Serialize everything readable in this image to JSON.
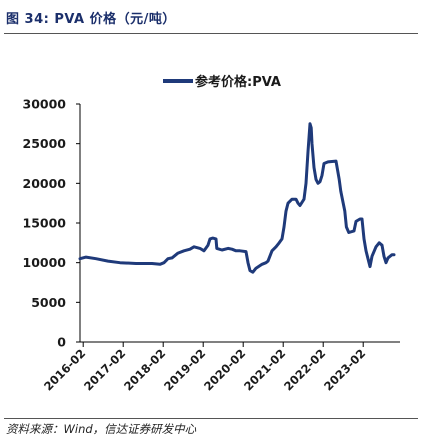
{
  "figure": {
    "title": "图 34:  PVA 价格（元/吨）",
    "source": "资料来源：Wind，信达证券研发中心"
  },
  "chart_data": {
    "type": "line",
    "legend": {
      "entries": [
        "参考价格:PVA"
      ],
      "placement": "top-center"
    },
    "xlabel": "",
    "ylabel": "",
    "xlim": [
      2016.0,
      2024.0
    ],
    "ylim": [
      0,
      30000
    ],
    "y_ticks": [
      0,
      5000,
      10000,
      15000,
      20000,
      25000,
      30000
    ],
    "x_ticks": [
      {
        "label": "2016-02",
        "x": 2016.08
      },
      {
        "label": "2017-02",
        "x": 2017.08
      },
      {
        "label": "2018-02",
        "x": 2018.08
      },
      {
        "label": "2019-02",
        "x": 2019.08
      },
      {
        "label": "2020-02",
        "x": 2020.08
      },
      {
        "label": "2021-02",
        "x": 2021.08
      },
      {
        "label": "2022-02",
        "x": 2022.08
      },
      {
        "label": "2023-02",
        "x": 2023.08
      }
    ],
    "colors": {
      "series": "#1f3a7a",
      "axis": "#000000"
    },
    "grid": false,
    "series": [
      {
        "name": "参考价格:PVA",
        "points": [
          [
            2016.0,
            10500
          ],
          [
            2016.15,
            10700
          ],
          [
            2016.4,
            10500
          ],
          [
            2016.7,
            10200
          ],
          [
            2017.0,
            10000
          ],
          [
            2017.4,
            9900
          ],
          [
            2017.8,
            9900
          ],
          [
            2018.0,
            9800
          ],
          [
            2018.1,
            10000
          ],
          [
            2018.2,
            10500
          ],
          [
            2018.3,
            10600
          ],
          [
            2018.45,
            11200
          ],
          [
            2018.6,
            11500
          ],
          [
            2018.75,
            11700
          ],
          [
            2018.85,
            12000
          ],
          [
            2019.0,
            11800
          ],
          [
            2019.1,
            11500
          ],
          [
            2019.2,
            12200
          ],
          [
            2019.25,
            13000
          ],
          [
            2019.32,
            13100
          ],
          [
            2019.4,
            13000
          ],
          [
            2019.42,
            11800
          ],
          [
            2019.55,
            11600
          ],
          [
            2019.7,
            11800
          ],
          [
            2019.8,
            11700
          ],
          [
            2019.9,
            11500
          ],
          [
            2020.0,
            11500
          ],
          [
            2020.15,
            11400
          ],
          [
            2020.2,
            10000
          ],
          [
            2020.25,
            9000
          ],
          [
            2020.32,
            8800
          ],
          [
            2020.4,
            9300
          ],
          [
            2020.55,
            9800
          ],
          [
            2020.65,
            10000
          ],
          [
            2020.7,
            10200
          ],
          [
            2020.8,
            11500
          ],
          [
            2020.9,
            12000
          ],
          [
            2020.98,
            12500
          ],
          [
            2021.05,
            13000
          ],
          [
            2021.1,
            14500
          ],
          [
            2021.15,
            16500
          ],
          [
            2021.2,
            17500
          ],
          [
            2021.3,
            18000
          ],
          [
            2021.4,
            18000
          ],
          [
            2021.45,
            17500
          ],
          [
            2021.5,
            17200
          ],
          [
            2021.6,
            18000
          ],
          [
            2021.65,
            20000
          ],
          [
            2021.7,
            24000
          ],
          [
            2021.75,
            27500
          ],
          [
            2021.78,
            27000
          ],
          [
            2021.8,
            25000
          ],
          [
            2021.85,
            22000
          ],
          [
            2021.9,
            20500
          ],
          [
            2021.95,
            20000
          ],
          [
            2022.0,
            20200
          ],
          [
            2022.05,
            21000
          ],
          [
            2022.1,
            22500
          ],
          [
            2022.2,
            22700
          ],
          [
            2022.4,
            22800
          ],
          [
            2022.48,
            20500
          ],
          [
            2022.52,
            19000
          ],
          [
            2022.58,
            17500
          ],
          [
            2022.62,
            16500
          ],
          [
            2022.66,
            14500
          ],
          [
            2022.72,
            13800
          ],
          [
            2022.85,
            14000
          ],
          [
            2022.9,
            15200
          ],
          [
            2023.0,
            15500
          ],
          [
            2023.05,
            15500
          ],
          [
            2023.1,
            13000
          ],
          [
            2023.15,
            11500
          ],
          [
            2023.2,
            10500
          ],
          [
            2023.25,
            9500
          ],
          [
            2023.3,
            10800
          ],
          [
            2023.4,
            12000
          ],
          [
            2023.48,
            12500
          ],
          [
            2023.55,
            12200
          ],
          [
            2023.6,
            10800
          ],
          [
            2023.65,
            10000
          ],
          [
            2023.7,
            10600
          ],
          [
            2023.8,
            11000
          ],
          [
            2023.85,
            11000
          ]
        ]
      }
    ]
  }
}
